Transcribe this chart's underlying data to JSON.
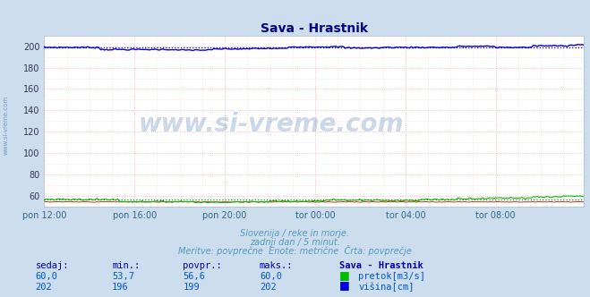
{
  "title": "Sava - Hrastnik",
  "title_color": "#000080",
  "bg_color": "#ccdded",
  "plot_bg_color": "#ffffff",
  "grid_color_major": "#ffaaaa",
  "grid_color_minor": "#ffcccc",
  "xlabel_ticks": [
    "pon 12:00",
    "pon 16:00",
    "pon 20:00",
    "tor 00:00",
    "tor 04:00",
    "tor 08:00"
  ],
  "ylabel_ticks": [
    60,
    80,
    100,
    120,
    140,
    160,
    180,
    200
  ],
  "ylim": [
    50,
    210
  ],
  "xlim_min": 0,
  "xlim_max": 287,
  "n_points": 288,
  "pretok_min": 53.7,
  "pretok_max": 60.0,
  "pretok_avg": 56.6,
  "pretok_now": 60.0,
  "visina_min": 196,
  "visina_max": 202,
  "visina_avg": 199,
  "visina_now": 202,
  "pretok_color": "#00bb00",
  "pretok_avg_color": "#009900",
  "visina_color": "#0000dd",
  "visina_avg_color": "#000099",
  "temp_color": "#cc0000",
  "footer_line1": "Slovenija / reke in morje.",
  "footer_line2": "zadnji dan / 5 minut.",
  "footer_line3": "Meritve: povprečne  Enote: metrične  Črta: povprečje",
  "footer_color": "#5599bb",
  "watermark": "www.si-vreme.com",
  "left_label": "www.si-vreme.com",
  "table_headers": [
    "sedaj:",
    "min.:",
    "povpr.:",
    "maks.:",
    "Sava - Hrastnik"
  ],
  "table_label_color": "#0000aa",
  "table_value_color": "#0055cc",
  "pretok_legend": "pretok[m3/s]",
  "visina_legend": "višina[cm]"
}
